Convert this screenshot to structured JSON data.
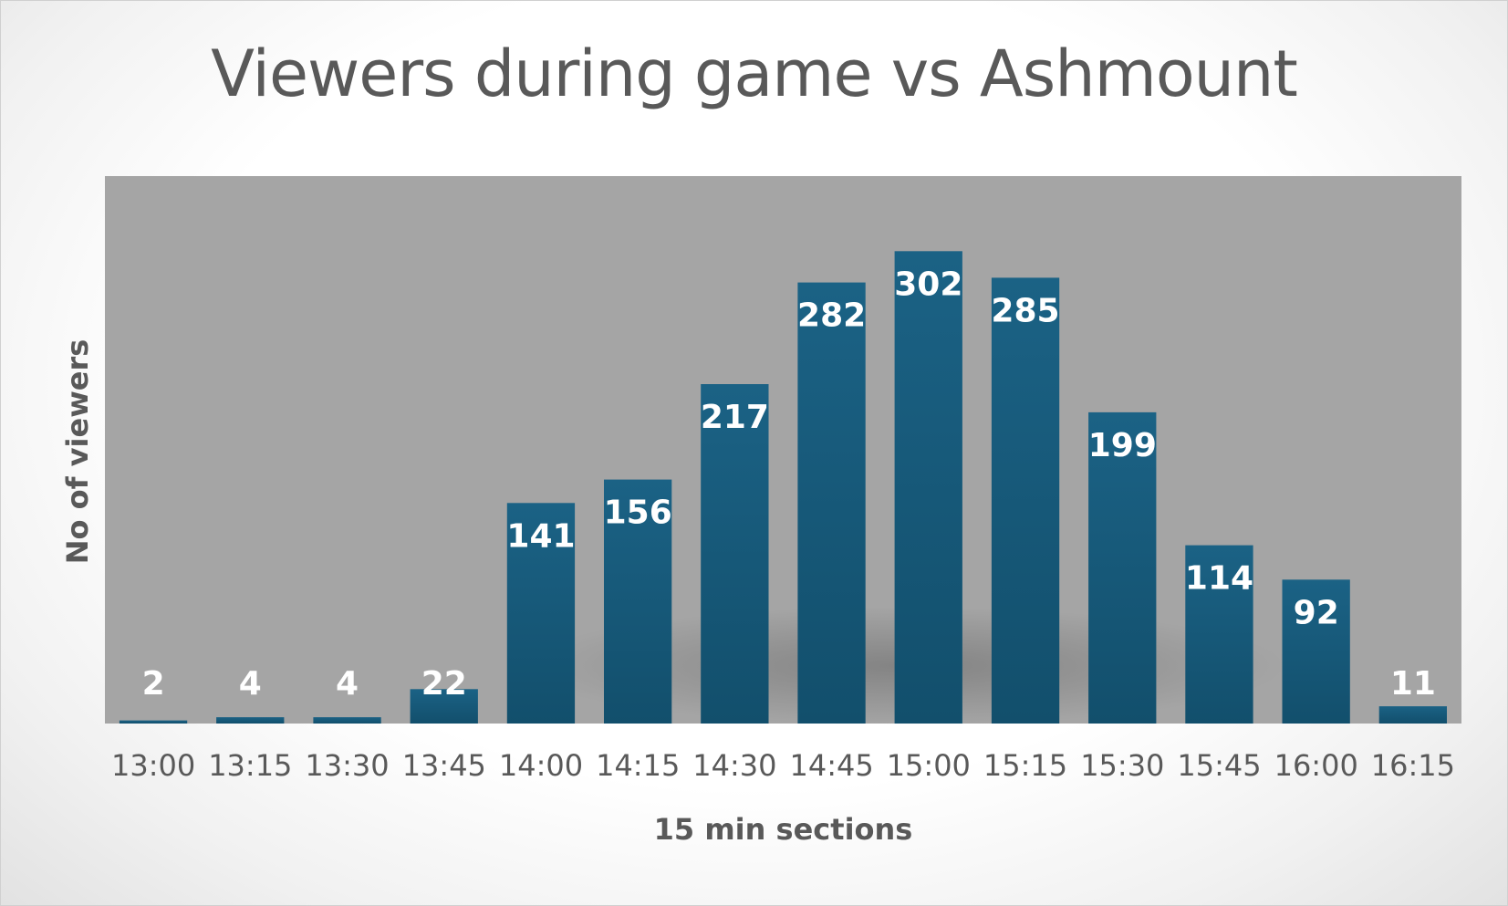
{
  "chart_data": {
    "type": "bar",
    "title": "Viewers during game vs Ashmount",
    "xlabel": "15 min sections",
    "ylabel": "No of viewers",
    "categories": [
      "13:00",
      "13:15",
      "13:30",
      "13:45",
      "14:00",
      "14:15",
      "14:30",
      "14:45",
      "15:00",
      "15:15",
      "15:30",
      "15:45",
      "16:00",
      "16:15"
    ],
    "values": [
      2,
      4,
      4,
      22,
      141,
      156,
      217,
      282,
      302,
      285,
      199,
      114,
      92,
      11
    ],
    "ylim": [
      0,
      350
    ],
    "grid": false,
    "legend": "none",
    "colors": {
      "bar_top": "#1b6285",
      "bar_bottom": "#124f6c",
      "plot_background": "#a5a5a5",
      "text": "#595959",
      "data_label": "#ffffff"
    }
  }
}
